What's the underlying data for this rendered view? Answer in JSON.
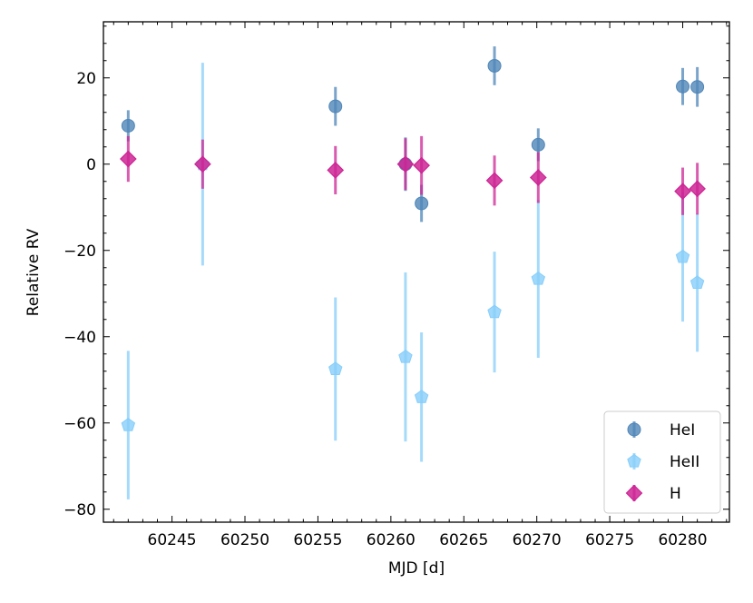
{
  "chart_data": {
    "type": "scatter",
    "title": "",
    "xlabel": "MJD [d]",
    "ylabel": "Relative RV",
    "xlim": [
      60240.3,
      60283.2
    ],
    "ylim": [
      -83,
      33
    ],
    "xticks": [
      60245,
      60250,
      60255,
      60260,
      60265,
      60270,
      60275,
      60280
    ],
    "yticks": [
      -80,
      -60,
      -40,
      -20,
      0,
      20
    ],
    "grid": false,
    "legend_position": "lower-right",
    "series": [
      {
        "name": "HeI",
        "marker": "circle",
        "color": "#4f86b8",
        "points": [
          {
            "x": 60242.0,
            "y": 8.9,
            "err": 3.6
          },
          {
            "x": 60256.2,
            "y": 13.4,
            "err": 4.5
          },
          {
            "x": 60261.0,
            "y": 0.0,
            "err": 6.2
          },
          {
            "x": 60262.1,
            "y": -9.1,
            "err": 4.3
          },
          {
            "x": 60267.1,
            "y": 22.8,
            "err": 4.5
          },
          {
            "x": 60270.1,
            "y": 4.5,
            "err": 3.8
          },
          {
            "x": 60280.0,
            "y": 18.0,
            "err": 4.3
          },
          {
            "x": 60281.0,
            "y": 17.9,
            "err": 4.6
          }
        ]
      },
      {
        "name": "HeII",
        "marker": "pentagon",
        "color": "#87cefa",
        "points": [
          {
            "x": 60242.0,
            "y": -60.5,
            "err": 17.2
          },
          {
            "x": 60247.1,
            "y": 0.0,
            "err": 23.5
          },
          {
            "x": 60256.2,
            "y": -47.5,
            "err": 16.6
          },
          {
            "x": 60261.0,
            "y": -44.7,
            "err": 19.6
          },
          {
            "x": 60262.1,
            "y": -54.0,
            "err": 15.0
          },
          {
            "x": 60267.1,
            "y": -34.3,
            "err": 14.0
          },
          {
            "x": 60270.1,
            "y": -26.6,
            "err": 18.3
          },
          {
            "x": 60280.0,
            "y": -21.5,
            "err": 15.0
          },
          {
            "x": 60281.0,
            "y": -27.5,
            "err": 16.0
          }
        ]
      },
      {
        "name": "H",
        "marker": "diamond",
        "color": "#cc2594",
        "points": [
          {
            "x": 60242.0,
            "y": 1.2,
            "err": 5.3
          },
          {
            "x": 60247.1,
            "y": 0.0,
            "err": 5.7
          },
          {
            "x": 60256.2,
            "y": -1.4,
            "err": 5.6
          },
          {
            "x": 60261.0,
            "y": 0.0,
            "err": 6.0
          },
          {
            "x": 60262.1,
            "y": -0.3,
            "err": 6.8
          },
          {
            "x": 60267.1,
            "y": -3.8,
            "err": 5.8
          },
          {
            "x": 60270.1,
            "y": -3.1,
            "err": 5.9
          },
          {
            "x": 60280.0,
            "y": -6.3,
            "err": 5.5
          },
          {
            "x": 60281.0,
            "y": -5.7,
            "err": 6.0
          }
        ]
      }
    ]
  }
}
